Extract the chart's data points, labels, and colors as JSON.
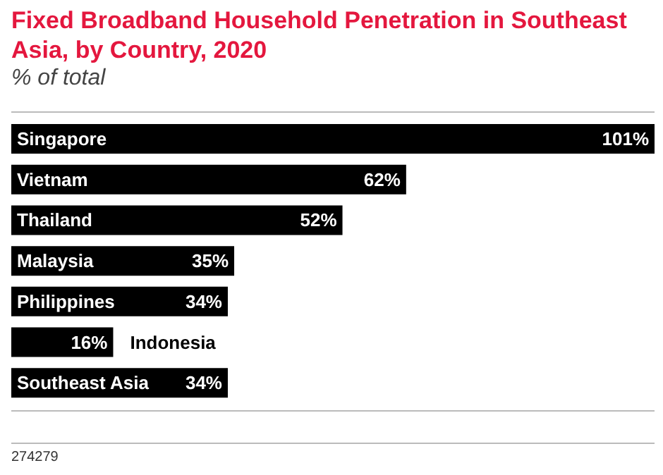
{
  "chart_data": {
    "type": "bar",
    "orientation": "horizontal",
    "title": "Fixed Broadband Household Penetration in Southeast Asia, by Country, 2020",
    "subtitle": "% of total",
    "categories": [
      "Singapore",
      "Vietnam",
      "Thailand",
      "Malaysia",
      "Philippines",
      "Indonesia",
      "Southeast Asia"
    ],
    "values": [
      101,
      62,
      52,
      35,
      34,
      16,
      34
    ],
    "value_labels": [
      "101%",
      "62%",
      "52%",
      "35%",
      "34%",
      "16%",
      "34%"
    ],
    "color": "#000000",
    "annotations": [
      "274279"
    ]
  }
}
